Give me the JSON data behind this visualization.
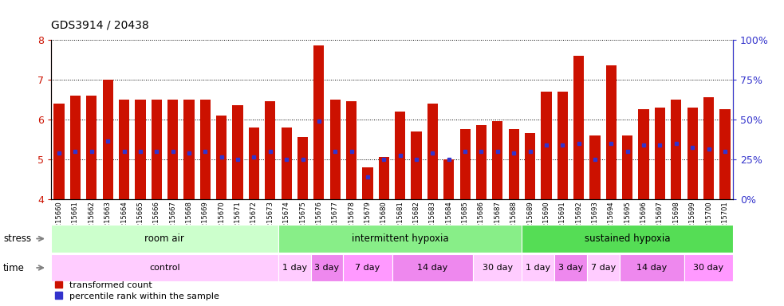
{
  "title": "GDS3914 / 20438",
  "samples": [
    "GSM215660",
    "GSM215661",
    "GSM215662",
    "GSM215663",
    "GSM215664",
    "GSM215665",
    "GSM215666",
    "GSM215667",
    "GSM215668",
    "GSM215669",
    "GSM215670",
    "GSM215671",
    "GSM215672",
    "GSM215673",
    "GSM215674",
    "GSM215675",
    "GSM215676",
    "GSM215677",
    "GSM215678",
    "GSM215679",
    "GSM215680",
    "GSM215681",
    "GSM215682",
    "GSM215683",
    "GSM215684",
    "GSM215685",
    "GSM215686",
    "GSM215687",
    "GSM215688",
    "GSM215689",
    "GSM215690",
    "GSM215691",
    "GSM215692",
    "GSM215693",
    "GSM215694",
    "GSM215695",
    "GSM215696",
    "GSM215697",
    "GSM215698",
    "GSM215699",
    "GSM215700",
    "GSM215701"
  ],
  "bar_heights": [
    6.4,
    6.6,
    6.6,
    7.0,
    6.5,
    6.5,
    6.5,
    6.5,
    6.5,
    6.5,
    6.1,
    6.35,
    5.8,
    6.45,
    5.8,
    5.55,
    7.85,
    6.5,
    6.45,
    4.8,
    5.05,
    6.2,
    5.7,
    6.4,
    5.0,
    5.75,
    5.85,
    5.95,
    5.75,
    5.65,
    6.7,
    6.7,
    7.6,
    5.6,
    7.35,
    5.6,
    6.25,
    6.3,
    6.5,
    6.3,
    6.55,
    6.25
  ],
  "blue_dot_heights": [
    5.15,
    5.2,
    5.2,
    5.45,
    5.2,
    5.2,
    5.2,
    5.2,
    5.15,
    5.2,
    5.05,
    5.0,
    5.05,
    5.2,
    5.0,
    5.0,
    5.95,
    5.2,
    5.2,
    4.55,
    5.0,
    5.1,
    5.0,
    5.15,
    5.0,
    5.2,
    5.2,
    5.2,
    5.15,
    5.2,
    5.35,
    5.35,
    5.4,
    5.0,
    5.4,
    5.2,
    5.35,
    5.35,
    5.4,
    5.3,
    5.25,
    5.2
  ],
  "ylim": [
    4,
    8
  ],
  "yticks_left": [
    4,
    5,
    6,
    7,
    8
  ],
  "yticks_right_vals": [
    0,
    25,
    50,
    75,
    100
  ],
  "bar_color": "#CC1100",
  "dot_color": "#3333CC",
  "stress_groups": [
    {
      "label": "room air",
      "start": 0,
      "end": 14,
      "color": "#CCFFCC"
    },
    {
      "label": "intermittent hypoxia",
      "start": 14,
      "end": 29,
      "color": "#88EE88"
    },
    {
      "label": "sustained hypoxia",
      "start": 29,
      "end": 42,
      "color": "#55DD55"
    }
  ],
  "time_groups": [
    {
      "label": "control",
      "start": 0,
      "end": 14,
      "color": "#FFCCFF"
    },
    {
      "label": "1 day",
      "start": 14,
      "end": 16,
      "color": "#FFCCFF"
    },
    {
      "label": "3 day",
      "start": 16,
      "end": 18,
      "color": "#EE88EE"
    },
    {
      "label": "7 day",
      "start": 18,
      "end": 21,
      "color": "#FF99FF"
    },
    {
      "label": "14 day",
      "start": 21,
      "end": 26,
      "color": "#EE88EE"
    },
    {
      "label": "30 day",
      "start": 26,
      "end": 29,
      "color": "#FFCCFF"
    },
    {
      "label": "1 day",
      "start": 29,
      "end": 31,
      "color": "#FFCCFF"
    },
    {
      "label": "3 day",
      "start": 31,
      "end": 33,
      "color": "#EE88EE"
    },
    {
      "label": "7 day",
      "start": 33,
      "end": 35,
      "color": "#FFCCFF"
    },
    {
      "label": "14 day",
      "start": 35,
      "end": 39,
      "color": "#EE88EE"
    },
    {
      "label": "30 day",
      "start": 39,
      "end": 42,
      "color": "#FF99FF"
    }
  ]
}
